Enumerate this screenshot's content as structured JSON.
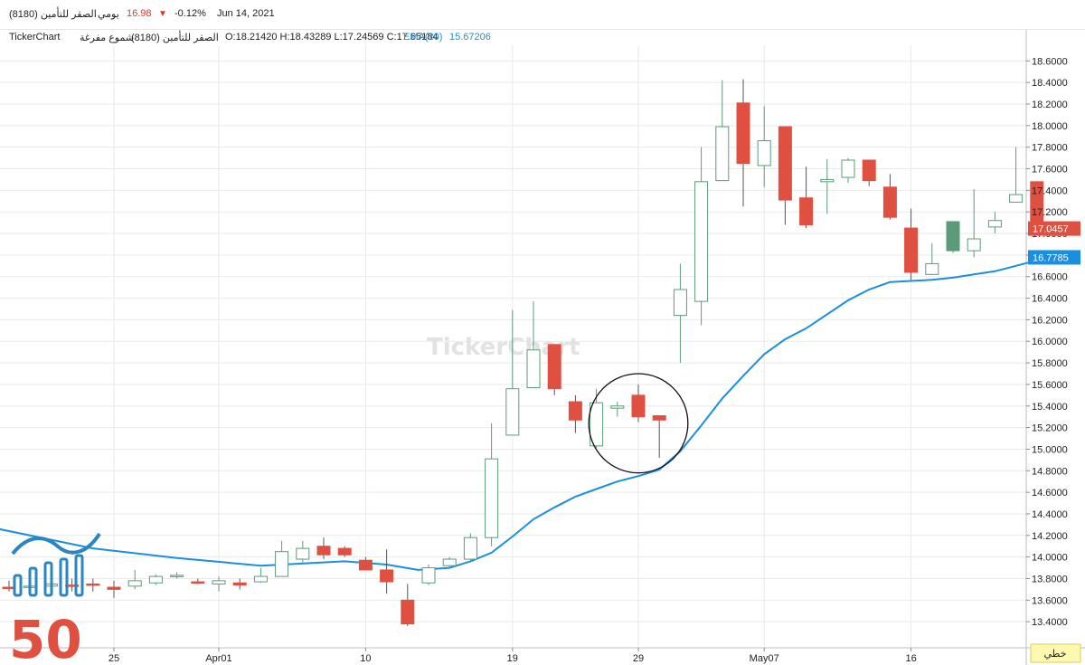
{
  "header": {
    "symbol": "الصقر للتأمين (8180)",
    "period": "يومي",
    "price": "16.98",
    "change": "-0.12%",
    "date": "Jun 14, 2021",
    "down_arrow": "▼"
  },
  "legend": {
    "source": "TickerChart",
    "name": "الصقر للتأمين (8180)",
    "type": "شموع مفرغة",
    "ohlc": "O:18.21420 H:18.43289 L:17.24569 C:17.65184",
    "ema_label": "EMA(20)",
    "ema_value": "15.67206"
  },
  "watermark": "TickerChart",
  "logo_text": "50",
  "colors": {
    "up": "#5b9b7a",
    "down": "#e05040",
    "ema": "#1a8ee0",
    "grid": "#e9e9e9"
  },
  "chart_data": {
    "type": "candlestick",
    "ylim": [
      13.2,
      18.8
    ],
    "y_ticks": [
      "13.4000",
      "13.6000",
      "13.8000",
      "14.0000",
      "14.2000",
      "14.4000",
      "14.6000",
      "14.8000",
      "15.0000",
      "15.2000",
      "15.4000",
      "15.6000",
      "15.8000",
      "16.0000",
      "16.2000",
      "16.4000",
      "16.6000",
      "16.8000",
      "17.0000",
      "17.2000",
      "17.4000",
      "17.6000",
      "17.8000",
      "18.0000",
      "18.2000",
      "18.4000",
      "18.6000"
    ],
    "x_ticks": [
      {
        "label": "25",
        "index": 5
      },
      {
        "label": "Apr01",
        "index": 10
      },
      {
        "label": "10",
        "index": 17
      },
      {
        "label": "19",
        "index": 24
      },
      {
        "label": "29",
        "index": 30
      },
      {
        "label": "May07",
        "index": 36
      },
      {
        "label": "16",
        "index": 43
      }
    ],
    "candles": [
      {
        "o": 13.72,
        "h": 13.78,
        "l": 13.68,
        "c": 13.72,
        "up": false
      },
      {
        "o": 13.72,
        "h": 13.8,
        "l": 13.66,
        "c": 13.73,
        "up": true
      },
      {
        "o": 13.73,
        "h": 13.82,
        "l": 13.7,
        "c": 13.75,
        "up": true
      },
      {
        "o": 13.74,
        "h": 13.8,
        "l": 13.68,
        "c": 13.74,
        "up": false
      },
      {
        "o": 13.75,
        "h": 13.8,
        "l": 13.68,
        "c": 13.74,
        "up": false
      },
      {
        "o": 13.72,
        "h": 13.78,
        "l": 13.62,
        "c": 13.7,
        "up": false
      },
      {
        "o": 13.73,
        "h": 13.88,
        "l": 13.7,
        "c": 13.78,
        "up": true
      },
      {
        "o": 13.76,
        "h": 13.84,
        "l": 13.74,
        "c": 13.82,
        "up": true
      },
      {
        "o": 13.82,
        "h": 13.86,
        "l": 13.8,
        "c": 13.83,
        "up": true
      },
      {
        "o": 13.77,
        "h": 13.8,
        "l": 13.75,
        "c": 13.76,
        "up": false
      },
      {
        "o": 13.75,
        "h": 13.82,
        "l": 13.68,
        "c": 13.78,
        "up": true
      },
      {
        "o": 13.76,
        "h": 13.8,
        "l": 13.7,
        "c": 13.74,
        "up": false
      },
      {
        "o": 13.77,
        "h": 13.9,
        "l": 13.76,
        "c": 13.82,
        "up": true
      },
      {
        "o": 13.82,
        "h": 14.15,
        "l": 13.82,
        "c": 14.05,
        "up": true
      },
      {
        "o": 13.98,
        "h": 14.15,
        "l": 13.95,
        "c": 14.08,
        "up": true
      },
      {
        "o": 14.1,
        "h": 14.18,
        "l": 13.98,
        "c": 14.02,
        "up": false
      },
      {
        "o": 14.08,
        "h": 14.1,
        "l": 14.0,
        "c": 14.02,
        "up": false
      },
      {
        "o": 13.97,
        "h": 14.0,
        "l": 13.9,
        "c": 13.88,
        "up": false
      },
      {
        "o": 13.88,
        "h": 14.07,
        "l": 13.66,
        "c": 13.77,
        "up": false
      },
      {
        "o": 13.6,
        "h": 13.75,
        "l": 13.36,
        "c": 13.38,
        "up": false
      },
      {
        "o": 13.76,
        "h": 13.93,
        "l": 13.74,
        "c": 13.9,
        "up": true
      },
      {
        "o": 13.92,
        "h": 14.0,
        "l": 13.9,
        "c": 13.98,
        "up": true
      },
      {
        "o": 13.98,
        "h": 14.22,
        "l": 13.96,
        "c": 14.18,
        "up": true
      },
      {
        "o": 14.18,
        "h": 15.24,
        "l": 14.1,
        "c": 14.91,
        "up": true
      },
      {
        "o": 15.13,
        "h": 16.29,
        "l": 15.13,
        "c": 15.56,
        "up": true
      },
      {
        "o": 15.57,
        "h": 16.37,
        "l": 15.57,
        "c": 15.92,
        "up": true
      },
      {
        "o": 15.97,
        "h": 15.97,
        "l": 15.5,
        "c": 15.56,
        "up": false
      },
      {
        "o": 15.44,
        "h": 15.5,
        "l": 15.15,
        "c": 15.27,
        "up": false
      },
      {
        "o": 15.03,
        "h": 15.56,
        "l": 15.01,
        "c": 15.43,
        "up": true
      },
      {
        "o": 15.38,
        "h": 15.44,
        "l": 15.3,
        "c": 15.4,
        "up": true
      },
      {
        "o": 15.5,
        "h": 15.6,
        "l": 15.25,
        "c": 15.3,
        "up": false
      },
      {
        "o": 15.31,
        "h": 15.31,
        "l": 14.92,
        "c": 15.27,
        "up": false
      },
      {
        "o": 16.24,
        "h": 16.72,
        "l": 15.8,
        "c": 16.48,
        "up": true
      },
      {
        "o": 16.37,
        "h": 17.8,
        "l": 16.15,
        "c": 17.48,
        "up": true
      },
      {
        "o": 17.49,
        "h": 18.42,
        "l": 17.49,
        "c": 17.99,
        "up": true
      },
      {
        "o": 18.21,
        "h": 18.43,
        "l": 17.25,
        "c": 17.65,
        "up": false
      },
      {
        "o": 17.63,
        "h": 18.18,
        "l": 17.43,
        "c": 17.86,
        "up": true
      },
      {
        "o": 17.99,
        "h": 17.99,
        "l": 17.08,
        "c": 17.31,
        "up": false
      },
      {
        "o": 17.33,
        "h": 17.62,
        "l": 17.05,
        "c": 17.08,
        "up": false
      },
      {
        "o": 17.48,
        "h": 17.69,
        "l": 17.18,
        "c": 17.5,
        "up": true
      },
      {
        "o": 17.52,
        "h": 17.7,
        "l": 17.47,
        "c": 17.68,
        "up": true
      },
      {
        "o": 17.68,
        "h": 17.68,
        "l": 17.44,
        "c": 17.49,
        "up": false
      },
      {
        "o": 17.43,
        "h": 17.55,
        "l": 17.13,
        "c": 17.15,
        "up": false
      },
      {
        "o": 17.05,
        "h": 17.23,
        "l": 16.57,
        "c": 16.64,
        "up": false
      },
      {
        "o": 16.62,
        "h": 16.91,
        "l": 16.62,
        "c": 16.72,
        "up": true
      },
      {
        "o": 16.84,
        "h": 17.1,
        "l": 16.82,
        "c": 17.11,
        "up": true,
        "filled": true
      },
      {
        "o": 16.84,
        "h": 17.41,
        "l": 16.78,
        "c": 16.95,
        "up": true
      },
      {
        "o": 17.06,
        "h": 17.2,
        "l": 17.0,
        "c": 17.12,
        "up": true
      },
      {
        "o": 17.29,
        "h": 17.8,
        "l": 17.29,
        "c": 17.36,
        "up": true
      },
      {
        "o": 17.48,
        "h": 17.48,
        "l": 17.02,
        "c": 17.04,
        "up": false
      }
    ],
    "ema": [
      {
        "i": -0.5,
        "v": 14.26
      },
      {
        "i": 4,
        "v": 14.08
      },
      {
        "i": 8,
        "v": 13.99
      },
      {
        "i": 12,
        "v": 13.92
      },
      {
        "i": 16,
        "v": 13.96
      },
      {
        "i": 18,
        "v": 13.93
      },
      {
        "i": 19.5,
        "v": 13.88
      },
      {
        "i": 21,
        "v": 13.9
      },
      {
        "i": 22,
        "v": 13.96
      },
      {
        "i": 23,
        "v": 14.04
      },
      {
        "i": 24,
        "v": 14.19
      },
      {
        "i": 25,
        "v": 14.35
      },
      {
        "i": 26,
        "v": 14.46
      },
      {
        "i": 27,
        "v": 14.56
      },
      {
        "i": 28,
        "v": 14.63
      },
      {
        "i": 29,
        "v": 14.7
      },
      {
        "i": 30,
        "v": 14.75
      },
      {
        "i": 31,
        "v": 14.81
      },
      {
        "i": 32,
        "v": 14.98
      },
      {
        "i": 33,
        "v": 15.22
      },
      {
        "i": 34,
        "v": 15.47
      },
      {
        "i": 35,
        "v": 15.68
      },
      {
        "i": 36,
        "v": 15.88
      },
      {
        "i": 37,
        "v": 16.02
      },
      {
        "i": 38,
        "v": 16.12
      },
      {
        "i": 39,
        "v": 16.25
      },
      {
        "i": 40,
        "v": 16.38
      },
      {
        "i": 41,
        "v": 16.48
      },
      {
        "i": 42,
        "v": 16.55
      },
      {
        "i": 43,
        "v": 16.56
      },
      {
        "i": 44,
        "v": 16.57
      },
      {
        "i": 45,
        "v": 16.59
      },
      {
        "i": 46,
        "v": 16.62
      },
      {
        "i": 47,
        "v": 16.65
      },
      {
        "i": 48,
        "v": 16.7
      },
      {
        "i": 49,
        "v": 16.75
      },
      {
        "i": 49.6,
        "v": 16.78
      }
    ],
    "price_badge": {
      "label": "17.0457",
      "value": 17.0457
    },
    "ema_badge": {
      "label": "16.7785",
      "value": 16.7785
    },
    "annotation_circle": {
      "cx_index": 30,
      "cy_value": 15.24,
      "r_value": 0.46
    },
    "x_axis_button": "خطي"
  }
}
